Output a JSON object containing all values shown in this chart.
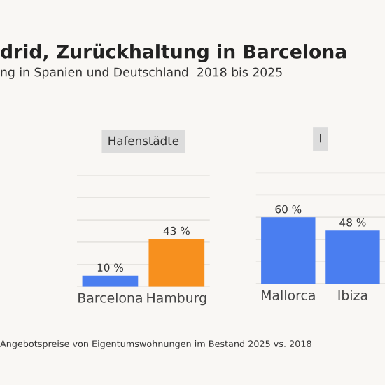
{
  "chart_data": [
    {
      "type": "other",
      "title": "drid, Zurückhaltung in Barcelona",
      "subtitle": "ng in Spanien und Deutschland  2018 bis 2025",
      "annotations": [
        "Angebotspreise von Eigentumswohnungen im Bestand 2025 vs. 2018"
      ]
    },
    {
      "type": "bar",
      "title": "Hafenstädte",
      "categories": [
        "Barcelona",
        "Hamburg"
      ],
      "colors": [
        "#4a7ef0",
        "#f7901e"
      ],
      "values": [
        10,
        43
      ],
      "value_labels": [
        "10 %",
        "43 %"
      ],
      "ylim": [
        0,
        100
      ],
      "yticks": [
        {
          "value": 0,
          "label": null
        },
        {
          "value": 20,
          "label": null
        },
        {
          "value": 40,
          "label": null
        },
        {
          "value": 60,
          "label": null
        },
        {
          "value": 80,
          "label": null
        },
        {
          "value": 100,
          "label": null
        }
      ],
      "grid": "y",
      "tick_labels": "x"
    },
    {
      "type": "bar",
      "title": "I",
      "categories": [
        "Mallorca",
        "Ibiza"
      ],
      "colors": [
        "#4a7ef0",
        "#4a7ef0"
      ],
      "values": [
        60,
        48
      ],
      "value_labels": [
        "60 %",
        "48 %"
      ],
      "ylim": [
        0,
        100
      ],
      "yticks": [
        {
          "value": 0,
          "label": null
        },
        {
          "value": 20,
          "label": null
        },
        {
          "value": 40,
          "label": null
        },
        {
          "value": 60,
          "label": null
        },
        {
          "value": 80,
          "label": null
        },
        {
          "value": 100,
          "label": null
        }
      ],
      "grid": "y",
      "tick_labels": "x"
    }
  ]
}
